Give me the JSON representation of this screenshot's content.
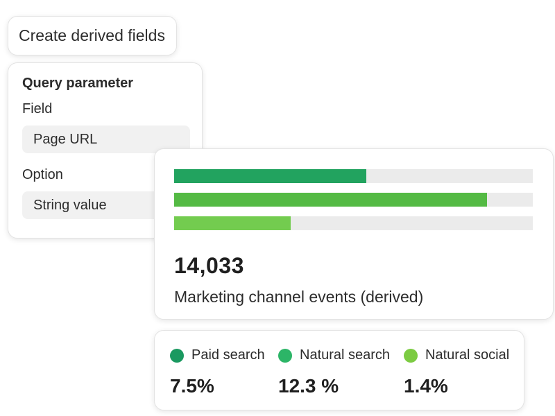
{
  "header": {
    "create_button_label": "Create derived fields"
  },
  "query_panel": {
    "title": "Query parameter",
    "field_label": "Field",
    "field_value": "Page URL",
    "option_label": "Option",
    "option_value": "String value"
  },
  "metric": {
    "value": "14,033",
    "label": "Marketing channel events (derived)",
    "bars": [
      {
        "fraction": 0.535,
        "color": "#22a35f"
      },
      {
        "fraction": 0.872,
        "color": "#54ba44"
      },
      {
        "fraction": 0.325,
        "color": "#73cc4f"
      }
    ]
  },
  "legend": {
    "items": [
      {
        "label": "Paid search",
        "value": "7.5%",
        "color": "#1a9960"
      },
      {
        "label": "Natural search",
        "value": "12.3 %",
        "color": "#2cb567"
      },
      {
        "label": "Natural social",
        "value": "1.4%",
        "color": "#7ccb42"
      }
    ]
  }
}
